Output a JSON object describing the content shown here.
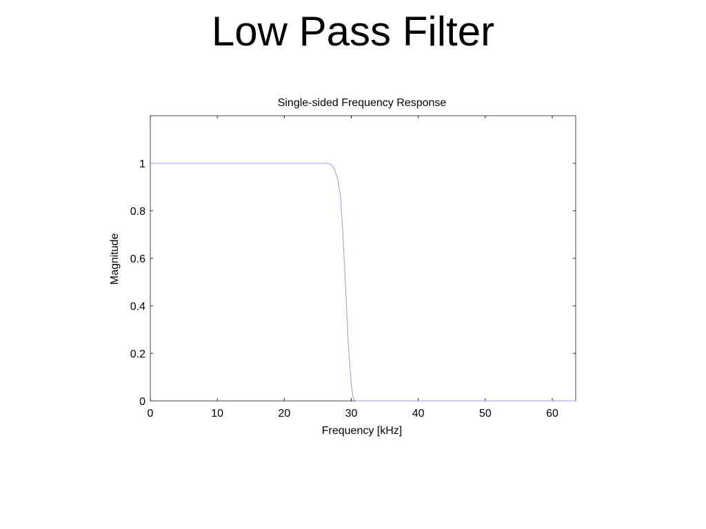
{
  "slide": {
    "title": "Low Pass Filter"
  },
  "chart_data": {
    "type": "line",
    "title": "Single-sided Frequency Response",
    "xlabel": "Frequency [kHz]",
    "ylabel": "Magnitude",
    "xlim": [
      0,
      63.5
    ],
    "ylim": [
      0,
      1.2
    ],
    "xticks": [
      0,
      10,
      20,
      30,
      40,
      50,
      60
    ],
    "xtick_labels": [
      "0",
      "10",
      "20",
      "30",
      "40",
      "50",
      "60"
    ],
    "yticks": [
      0,
      0.2,
      0.4,
      0.6,
      0.8,
      1
    ],
    "ytick_labels": [
      "0",
      "0.2",
      "0.4",
      "0.6",
      "0.8",
      "1"
    ],
    "grid": false,
    "legend": false,
    "series": [
      {
        "color": "#9999dd",
        "x": [
          0,
          10,
          20,
          26.5,
          27.0,
          27.5,
          28.0,
          28.4,
          28.8,
          29.2,
          29.6,
          30.0,
          30.3,
          30.6,
          31,
          40,
          50,
          60,
          63.5
        ],
        "y": [
          1,
          1,
          1,
          1,
          0.995,
          0.975,
          0.93,
          0.86,
          0.68,
          0.45,
          0.22,
          0.07,
          0.01,
          0,
          0,
          0,
          0,
          0,
          0
        ]
      }
    ]
  }
}
